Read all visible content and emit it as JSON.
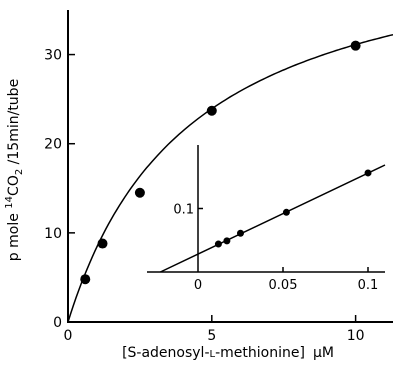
{
  "chart_data": [
    {
      "type": "scatter",
      "xlabel_parts": [
        "[S-adenosyl-",
        "L",
        "-methionine]",
        "μM"
      ],
      "ylabel_parts": [
        "p mole ",
        "14",
        "CO",
        "2",
        " /15min/tube"
      ],
      "xlim": [
        0,
        11.3
      ],
      "ylim": [
        0,
        35
      ],
      "xticks": [
        0,
        5,
        10
      ],
      "yticks": [
        0,
        10,
        20,
        30
      ],
      "xtick_labels": [
        "0",
        "5",
        "10"
      ],
      "ytick_labels": [
        "0",
        "10",
        "20",
        "30"
      ],
      "series": [
        {
          "x": [
            0.6,
            1.2,
            2.5,
            5.0,
            10.0
          ],
          "y": [
            4.8,
            8.8,
            14.5,
            23.7,
            31.0
          ],
          "fit": "saturation"
        }
      ]
    },
    {
      "type": "scatter",
      "inset": true,
      "xlim": [
        -0.03,
        0.11
      ],
      "ylim": [
        0,
        0.2
      ],
      "xticks": [
        0,
        0.05,
        0.1
      ],
      "xtick_labels": [
        "0",
        "0.05",
        "0.1"
      ],
      "yticks": [
        0.1
      ],
      "ytick_labels": [
        "0.1"
      ],
      "series": [
        {
          "x": [
            0.012,
            0.017,
            0.025,
            0.052,
            0.1
          ],
          "y": [
            0.044,
            0.049,
            0.061,
            0.094,
            0.156
          ],
          "fit": "linear"
        }
      ]
    }
  ]
}
